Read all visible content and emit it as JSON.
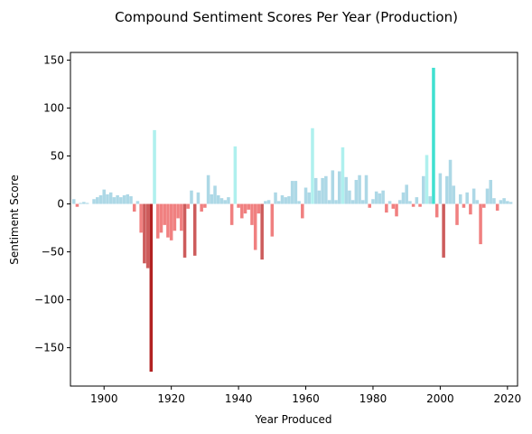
{
  "chart_data": {
    "type": "bar",
    "title": "Compound Sentiment Scores Per Year (Production)",
    "xlabel": "Year Produced",
    "ylabel": "Sentiment Score",
    "xlim": [
      1890,
      2023
    ],
    "ylim": [
      -190,
      158
    ],
    "x_ticks": [
      1900,
      1920,
      1940,
      1960,
      1980,
      2000,
      2020
    ],
    "y_ticks": [
      150,
      100,
      50,
      0,
      -50,
      -100,
      -150
    ],
    "grid": false,
    "legend": "none",
    "colors": {
      "positive": "#add8e6",
      "positive_high": "#aff0ee",
      "positive_max": "#40e0d0",
      "negative": "#f08080",
      "negative_strong": "#cd5c5c",
      "negative_max": "#b22222"
    },
    "bars": [
      {
        "x": 1891,
        "y": 5
      },
      {
        "x": 1892,
        "y": -3
      },
      {
        "x": 1893,
        "y": 1
      },
      {
        "x": 1894,
        "y": 2
      },
      {
        "x": 1895,
        "y": 1
      },
      {
        "x": 1897,
        "y": 5
      },
      {
        "x": 1898,
        "y": 7
      },
      {
        "x": 1899,
        "y": 9
      },
      {
        "x": 1900,
        "y": 15
      },
      {
        "x": 1901,
        "y": 10
      },
      {
        "x": 1902,
        "y": 12
      },
      {
        "x": 1903,
        "y": 7
      },
      {
        "x": 1904,
        "y": 9
      },
      {
        "x": 1905,
        "y": 7
      },
      {
        "x": 1906,
        "y": 9
      },
      {
        "x": 1907,
        "y": 10
      },
      {
        "x": 1908,
        "y": 8
      },
      {
        "x": 1909,
        "y": -8
      },
      {
        "x": 1910,
        "y": 3
      },
      {
        "x": 1911,
        "y": -30
      },
      {
        "x": 1912,
        "y": -62
      },
      {
        "x": 1913,
        "y": -67
      },
      {
        "x": 1914,
        "y": -175
      },
      {
        "x": 1915,
        "y": 77
      },
      {
        "x": 1916,
        "y": -36
      },
      {
        "x": 1917,
        "y": -30
      },
      {
        "x": 1918,
        "y": -22
      },
      {
        "x": 1919,
        "y": -35
      },
      {
        "x": 1920,
        "y": -38
      },
      {
        "x": 1921,
        "y": -28
      },
      {
        "x": 1922,
        "y": -15
      },
      {
        "x": 1923,
        "y": -28
      },
      {
        "x": 1924,
        "y": -56
      },
      {
        "x": 1925,
        "y": -5
      },
      {
        "x": 1926,
        "y": 14
      },
      {
        "x": 1927,
        "y": -54
      },
      {
        "x": 1928,
        "y": 12
      },
      {
        "x": 1929,
        "y": -8
      },
      {
        "x": 1930,
        "y": -4
      },
      {
        "x": 1931,
        "y": 30
      },
      {
        "x": 1932,
        "y": 10
      },
      {
        "x": 1933,
        "y": 19
      },
      {
        "x": 1934,
        "y": 9
      },
      {
        "x": 1935,
        "y": 6
      },
      {
        "x": 1936,
        "y": 4
      },
      {
        "x": 1937,
        "y": 7
      },
      {
        "x": 1938,
        "y": -22
      },
      {
        "x": 1939,
        "y": 60
      },
      {
        "x": 1940,
        "y": -4
      },
      {
        "x": 1941,
        "y": -15
      },
      {
        "x": 1942,
        "y": -10
      },
      {
        "x": 1943,
        "y": -6
      },
      {
        "x": 1944,
        "y": -22
      },
      {
        "x": 1945,
        "y": -48
      },
      {
        "x": 1946,
        "y": -10
      },
      {
        "x": 1947,
        "y": -58
      },
      {
        "x": 1948,
        "y": 3
      },
      {
        "x": 1949,
        "y": 4
      },
      {
        "x": 1950,
        "y": -34
      },
      {
        "x": 1951,
        "y": 12
      },
      {
        "x": 1952,
        "y": 3
      },
      {
        "x": 1953,
        "y": 9
      },
      {
        "x": 1954,
        "y": 7
      },
      {
        "x": 1955,
        "y": 8
      },
      {
        "x": 1956,
        "y": 24
      },
      {
        "x": 1957,
        "y": 24
      },
      {
        "x": 1958,
        "y": 3
      },
      {
        "x": 1959,
        "y": -15
      },
      {
        "x": 1960,
        "y": 17
      },
      {
        "x": 1961,
        "y": 12
      },
      {
        "x": 1962,
        "y": 79
      },
      {
        "x": 1963,
        "y": 27
      },
      {
        "x": 1964,
        "y": 14
      },
      {
        "x": 1965,
        "y": 27
      },
      {
        "x": 1966,
        "y": 29
      },
      {
        "x": 1967,
        "y": 4
      },
      {
        "x": 1968,
        "y": 35
      },
      {
        "x": 1969,
        "y": 4
      },
      {
        "x": 1970,
        "y": 34
      },
      {
        "x": 1971,
        "y": 59
      },
      {
        "x": 1972,
        "y": 28
      },
      {
        "x": 1973,
        "y": 14
      },
      {
        "x": 1974,
        "y": 4
      },
      {
        "x": 1975,
        "y": 25
      },
      {
        "x": 1976,
        "y": 30
      },
      {
        "x": 1977,
        "y": 4
      },
      {
        "x": 1978,
        "y": 30
      },
      {
        "x": 1979,
        "y": -4
      },
      {
        "x": 1980,
        "y": 5
      },
      {
        "x": 1981,
        "y": 13
      },
      {
        "x": 1982,
        "y": 11
      },
      {
        "x": 1983,
        "y": 14
      },
      {
        "x": 1984,
        "y": -9
      },
      {
        "x": 1985,
        "y": 3
      },
      {
        "x": 1986,
        "y": -5
      },
      {
        "x": 1987,
        "y": -13
      },
      {
        "x": 1988,
        "y": 4
      },
      {
        "x": 1989,
        "y": 12
      },
      {
        "x": 1990,
        "y": 20
      },
      {
        "x": 1991,
        "y": 3
      },
      {
        "x": 1992,
        "y": -3
      },
      {
        "x": 1993,
        "y": 7
      },
      {
        "x": 1994,
        "y": -3
      },
      {
        "x": 1995,
        "y": 29
      },
      {
        "x": 1996,
        "y": 51
      },
      {
        "x": 1997,
        "y": 8
      },
      {
        "x": 1998,
        "y": 142
      },
      {
        "x": 1999,
        "y": -14
      },
      {
        "x": 2000,
        "y": 32
      },
      {
        "x": 2001,
        "y": -56
      },
      {
        "x": 2002,
        "y": 29
      },
      {
        "x": 2003,
        "y": 46
      },
      {
        "x": 2004,
        "y": 19
      },
      {
        "x": 2005,
        "y": -22
      },
      {
        "x": 2006,
        "y": 10
      },
      {
        "x": 2007,
        "y": -4
      },
      {
        "x": 2008,
        "y": 12
      },
      {
        "x": 2009,
        "y": -11
      },
      {
        "x": 2010,
        "y": 16
      },
      {
        "x": 2011,
        "y": 4
      },
      {
        "x": 2012,
        "y": -42
      },
      {
        "x": 2013,
        "y": -4
      },
      {
        "x": 2014,
        "y": 16
      },
      {
        "x": 2015,
        "y": 25
      },
      {
        "x": 2016,
        "y": 6
      },
      {
        "x": 2017,
        "y": -7
      },
      {
        "x": 2018,
        "y": 4
      },
      {
        "x": 2019,
        "y": 6
      },
      {
        "x": 2020,
        "y": 3
      },
      {
        "x": 2021,
        "y": 2
      }
    ]
  }
}
